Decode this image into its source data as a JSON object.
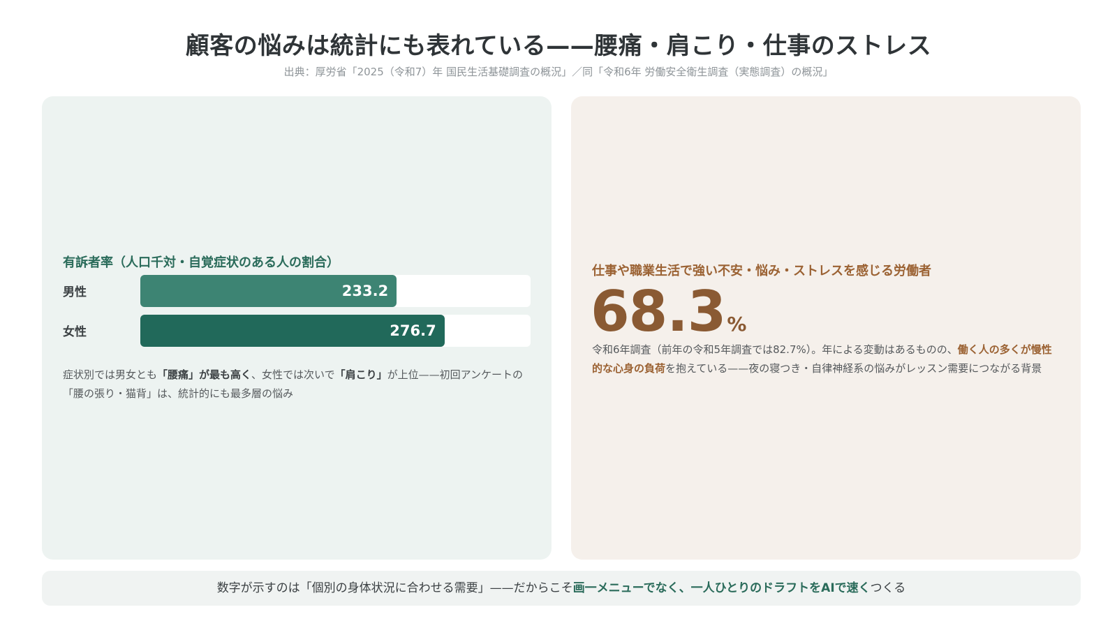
{
  "header": {
    "title": "顧客の悩みは統計にも表れている——腰痛・肩こり・仕事のストレス",
    "source": "出典：厚労省「2025（令和7）年 国民生活基礎調査の概況」／同「令和6年 労働安全衛生調査（実態調査）の概況」"
  },
  "left_card": {
    "note_pre": "症状別では男女とも",
    "note_b1": "「腰痛」が最も高く",
    "note_mid": "、女性では次いで",
    "note_b2": "「肩こり」",
    "note_post": "が上位——初回アンケートの「腰の張り・猫背」は、統計的にも最多層の悩み"
  },
  "chart_data": {
    "type": "bar",
    "orientation": "horizontal",
    "title": "有訴者率（人口千対・自覚症状のある人の割合）",
    "categories": [
      "男性",
      "女性"
    ],
    "values": [
      233.2,
      276.7
    ],
    "value_labels": [
      "233.2",
      "276.7"
    ],
    "colors": [
      "#3d8473",
      "#21695a"
    ],
    "xlim": [
      0,
      355
    ],
    "grid": false,
    "legend": "none"
  },
  "right_card": {
    "label": "仕事や職業生活で強い不安・悩み・ストレスを感じる労働者",
    "value": "68.3",
    "unit": "%",
    "note_pre": "令和6年調査（前年の令和5年調査では82.7%）。年による変動はあるものの、",
    "note_b": "働く人の多くが慢性的な心身の負荷",
    "note_post": "を抱えている——夜の寝つき・自律神経系の悩みがレッスン需要につながる背景"
  },
  "footer": {
    "pre": "数字が示すのは「個別の身体状況に合わせる需要」——だからこそ",
    "bold": "画一メニューでなく、一人ひとりのドラフトをAIで速く",
    "post": "つくる"
  },
  "colors": {
    "accent_green": "#2a6b5a",
    "accent_brown": "#8a5a33",
    "left_bg": "#edf3f1",
    "right_bg": "#f5f0eb"
  }
}
